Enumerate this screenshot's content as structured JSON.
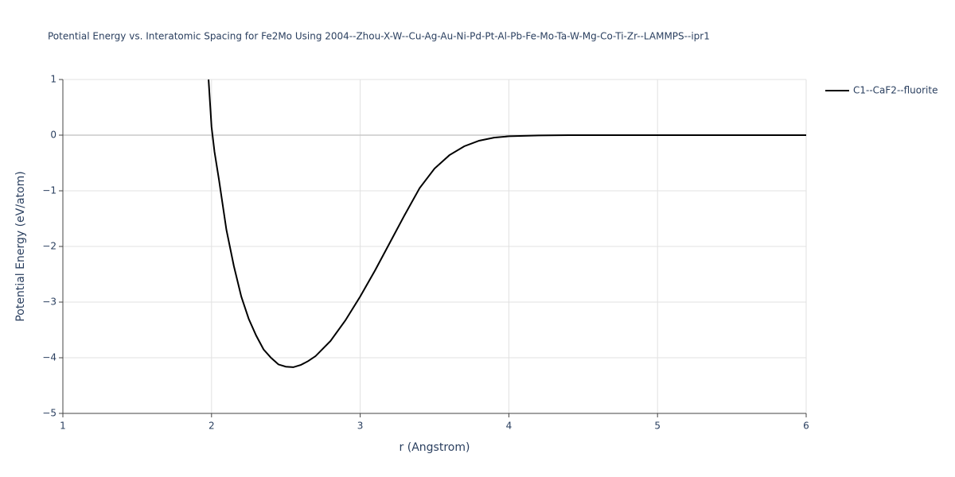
{
  "chart_data": {
    "type": "line",
    "title": "Potential Energy vs. Interatomic Spacing for Fe2Mo Using 2004--Zhou-X-W--Cu-Ag-Au-Ni-Pd-Pt-Al-Pb-Fe-Mo-Ta-W-Mg-Co-Ti-Zr--LAMMPS--ipr1",
    "x_label": "r (Angstrom)",
    "y_label": "Potential Energy (eV/atom)",
    "x": [
      1.98,
      2.0,
      2.02,
      2.05,
      2.1,
      2.15,
      2.2,
      2.25,
      2.3,
      2.35,
      2.4,
      2.45,
      2.5,
      2.55,
      2.6,
      2.65,
      2.7,
      2.8,
      2.9,
      3.0,
      3.1,
      3.2,
      3.3,
      3.4,
      3.5,
      3.6,
      3.7,
      3.8,
      3.9,
      4.0,
      4.2,
      4.4,
      5.0,
      6.0
    ],
    "series": [
      {
        "name": "C1--CaF2--fluorite",
        "color": "#000000",
        "values": [
          1.0,
          0.15,
          -0.3,
          -0.8,
          -1.7,
          -2.35,
          -2.9,
          -3.3,
          -3.6,
          -3.85,
          -4.0,
          -4.12,
          -4.16,
          -4.17,
          -4.13,
          -4.06,
          -3.97,
          -3.7,
          -3.33,
          -2.9,
          -2.43,
          -1.93,
          -1.43,
          -0.95,
          -0.6,
          -0.36,
          -0.2,
          -0.1,
          -0.045,
          -0.02,
          -0.005,
          0,
          0,
          0
        ]
      }
    ],
    "xlim": [
      1,
      6
    ],
    "xticks": [
      1,
      2,
      3,
      4,
      5,
      6
    ],
    "ylim": [
      -5,
      1
    ],
    "yticks": [
      {
        "value": -5,
        "label": "−5"
      },
      {
        "value": -4,
        "label": "−4"
      },
      {
        "value": -3,
        "label": "−3"
      },
      {
        "value": -2,
        "label": "−2"
      },
      {
        "value": -1,
        "label": "−1"
      },
      0,
      1
    ],
    "grid": true,
    "legend": "right"
  }
}
